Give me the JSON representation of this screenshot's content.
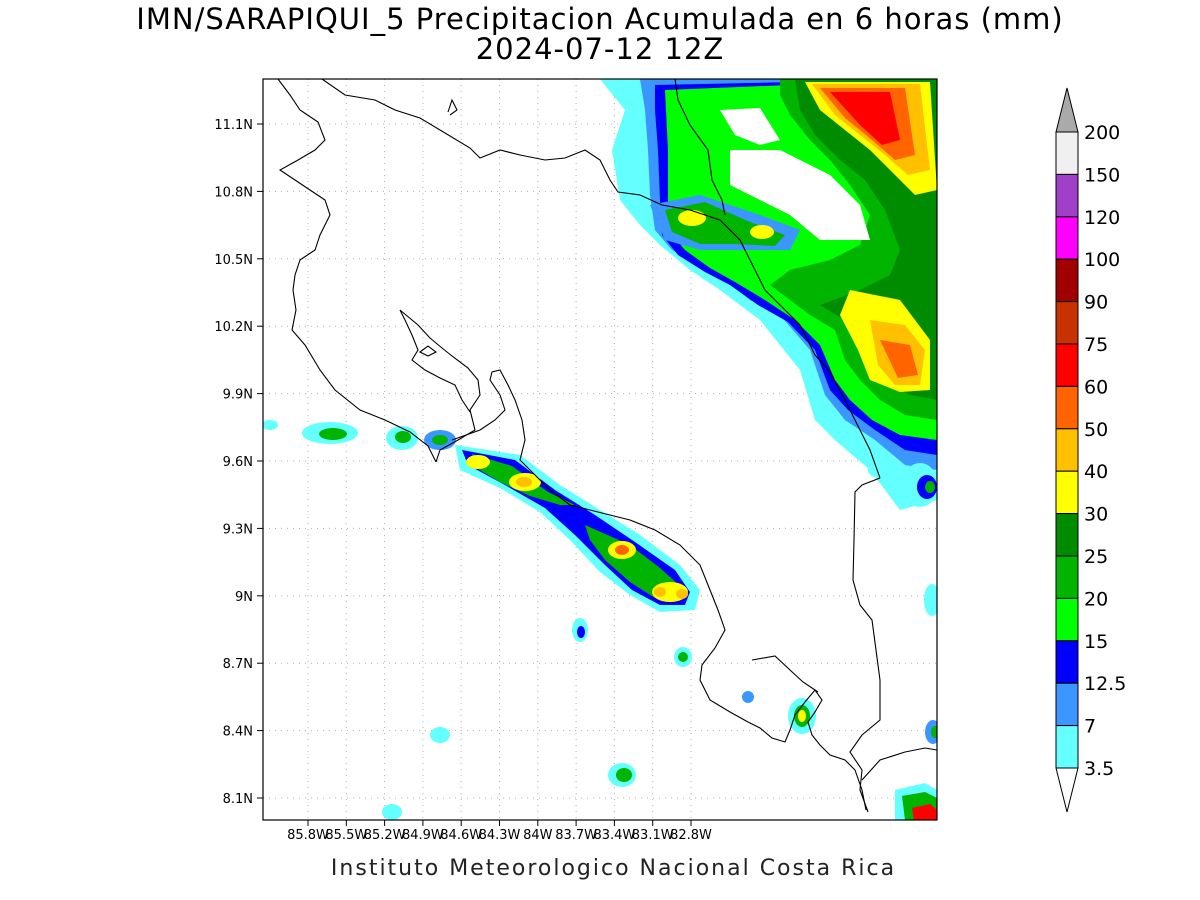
{
  "title": "IMN/SARAPIQUI_5 Precipitacion Acumulada en 6 horas (mm)",
  "subtitle": "2024-07-12 12Z",
  "footer": "Instituto Meteorologico Nacional Costa Rica",
  "lon_ticks": [
    "85.8W",
    "85.5W",
    "85.2W",
    "84.9W",
    "84.6W",
    "84.3W",
    "84W",
    "83.7W",
    "83.4W",
    "83.1W",
    "82.8W"
  ],
  "lat_ticks": [
    "11.1N",
    "10.8N",
    "10.5N",
    "10.2N",
    "9.9N",
    "9.6N",
    "9.3N",
    "9N",
    "8.7N",
    "8.4N",
    "8.1N"
  ],
  "legend": {
    "labels": [
      "200",
      "150",
      "120",
      "100",
      "90",
      "75",
      "60",
      "50",
      "40",
      "30",
      "25",
      "20",
      "15",
      "12.5",
      "7",
      "3.5"
    ],
    "colors": [
      "#aaaaaa",
      "#f0f0f0",
      "#a040c8",
      "#ff00ff",
      "#a00000",
      "#c83200",
      "#ff0000",
      "#ff6400",
      "#ffc000",
      "#ffff00",
      "#008c00",
      "#00b400",
      "#00ff00",
      "#0000ff",
      "#3c96ff",
      "#64ffff"
    ]
  },
  "precip_colors": {
    "cyan": "#64ffff",
    "lightblue": "#3c96ff",
    "blue": "#0000ff",
    "lightgreen": "#00ff00",
    "green": "#00b400",
    "darkgreen": "#008c00",
    "yellow": "#ffff00",
    "gold": "#ffc000",
    "orange": "#ff6400",
    "red": "#ff0000",
    "darkred": "#c83200"
  }
}
